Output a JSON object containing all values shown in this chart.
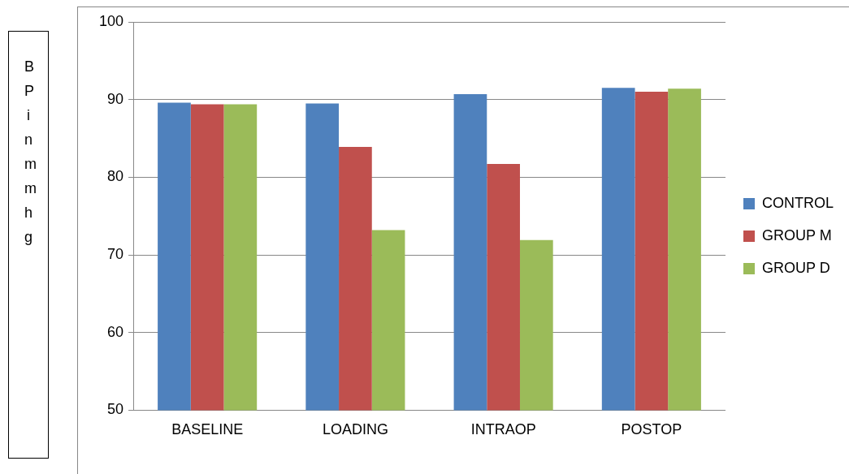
{
  "chart_data": {
    "type": "bar",
    "ylabel": "BP in mmhg",
    "categories": [
      "BASELINE",
      "LOADING",
      "INTRAOP",
      "POSTOP"
    ],
    "series": [
      {
        "name": "CONTROL",
        "color": "#4f81bd",
        "values": [
          89.6,
          89.5,
          90.7,
          91.5
        ]
      },
      {
        "name": "GROUP M",
        "color": "#c0504d",
        "values": [
          89.4,
          83.9,
          81.7,
          91.0
        ]
      },
      {
        "name": "GROUP D",
        "color": "#9bbb59",
        "values": [
          89.4,
          73.2,
          71.9,
          91.4
        ]
      }
    ],
    "ylim": [
      50,
      100
    ],
    "yticks": [
      50,
      60,
      70,
      80,
      90,
      100
    ],
    "grid": "y",
    "legend": "right"
  }
}
